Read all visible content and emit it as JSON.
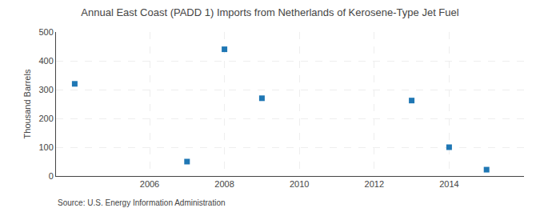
{
  "chart_data": {
    "type": "scatter",
    "title": "Annual East Coast (PADD 1) Imports from Netherlands of Kerosene-Type Jet Fuel",
    "y_label": "Thousand Barrels",
    "annotations": [
      "Source: U.S. Energy Information Administration"
    ],
    "x": [
      2004,
      2007,
      2008,
      2009,
      2013,
      2014,
      2015
    ],
    "values": [
      320,
      50,
      440,
      270,
      262,
      100,
      22
    ],
    "marker": "square",
    "xlim": [
      2003.5,
      2016.0
    ],
    "xticks": [
      2006,
      2008,
      2010,
      2012,
      2014
    ],
    "ylim": [
      0,
      500
    ],
    "yticks": [
      0,
      100,
      200,
      300,
      400,
      500
    ],
    "grid": true
  }
}
